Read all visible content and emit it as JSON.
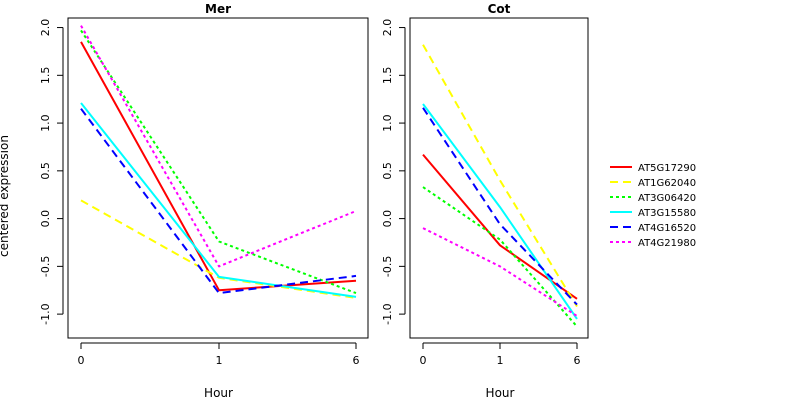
{
  "chart_data": [
    {
      "type": "line",
      "title": "Mer",
      "xlabel": "Hour",
      "ylabel": "centered expression",
      "categories": [
        "0",
        "1",
        "6"
      ],
      "ylim": [
        -1.25,
        2.1
      ],
      "yticks": [
        "-1.0",
        "-0.5",
        "0.0",
        "0.5",
        "1.0",
        "1.5",
        "2.0"
      ],
      "grid": false,
      "legend_position": "right",
      "series": [
        {
          "name": "AT5G17290",
          "values": [
            1.85,
            -0.75,
            -0.65
          ],
          "color": "#ff0000",
          "dash": "solid"
        },
        {
          "name": "AT1G62040",
          "values": [
            0.19,
            -0.62,
            -0.83
          ],
          "color": "#ffff00",
          "dash": "dashed"
        },
        {
          "name": "AT3G06420",
          "values": [
            1.97,
            -0.24,
            -0.78
          ],
          "color": "#00ff00",
          "dash": "dotted"
        },
        {
          "name": "AT3G15580",
          "values": [
            1.21,
            -0.61,
            -0.82
          ],
          "color": "#00ffff",
          "dash": "solid"
        },
        {
          "name": "AT4G16520",
          "values": [
            1.15,
            -0.78,
            -0.6
          ],
          "color": "#0000ff",
          "dash": "dashed"
        },
        {
          "name": "AT4G21980",
          "values": [
            2.02,
            -0.5,
            0.08
          ],
          "color": "#ff00ff",
          "dash": "dotted"
        }
      ]
    },
    {
      "type": "line",
      "title": "Cot",
      "xlabel": "Hour",
      "categories": [
        "0",
        "1",
        "6"
      ],
      "ylim": [
        -1.25,
        2.1
      ],
      "yticks": [
        "-1.0",
        "-0.5",
        "0.0",
        "0.5",
        "1.0",
        "1.5",
        "2.0"
      ],
      "grid": false,
      "series": [
        {
          "name": "AT5G17290",
          "values": [
            0.67,
            -0.28,
            -0.84
          ],
          "color": "#ff0000",
          "dash": "solid"
        },
        {
          "name": "AT1G62040",
          "values": [
            1.82,
            0.4,
            -0.92
          ],
          "color": "#ffff00",
          "dash": "dashed"
        },
        {
          "name": "AT3G06420",
          "values": [
            0.33,
            -0.22,
            -1.13
          ],
          "color": "#00ff00",
          "dash": "dotted"
        },
        {
          "name": "AT3G15580",
          "values": [
            1.2,
            0.12,
            -1.05
          ],
          "color": "#00ffff",
          "dash": "solid"
        },
        {
          "name": "AT4G16520",
          "values": [
            1.16,
            -0.06,
            -0.9
          ],
          "color": "#0000ff",
          "dash": "dashed"
        },
        {
          "name": "AT4G21980",
          "values": [
            -0.1,
            -0.5,
            -1.02
          ],
          "color": "#ff00ff",
          "dash": "dotted"
        }
      ]
    }
  ],
  "legend": [
    {
      "label": "AT5G17290",
      "color": "#ff0000",
      "dash": "solid"
    },
    {
      "label": "AT1G62040",
      "color": "#ffff00",
      "dash": "dashed"
    },
    {
      "label": "AT3G06420",
      "color": "#00ff00",
      "dash": "dotted"
    },
    {
      "label": "AT3G15580",
      "color": "#00ffff",
      "dash": "solid"
    },
    {
      "label": "AT4G16520",
      "color": "#0000ff",
      "dash": "dashed"
    },
    {
      "label": "AT4G21980",
      "color": "#ff00ff",
      "dash": "dotted"
    }
  ]
}
